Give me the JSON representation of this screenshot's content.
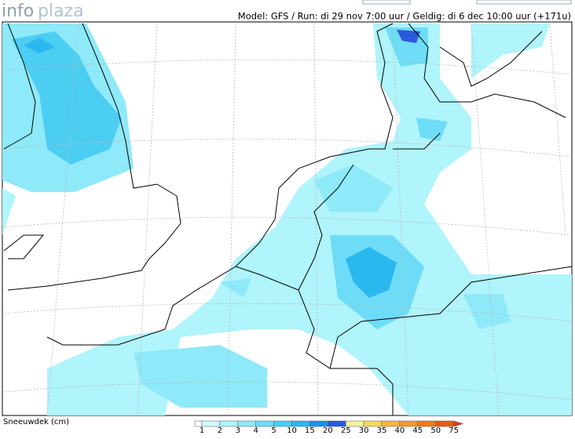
{
  "logo": {
    "part1": "info",
    "part2": "plaza"
  },
  "header": {
    "run_info": "Model: GFS / Run: di 29 nov 7:00 uur / Geldig: di 6 dec 10:00 uur (+171u)"
  },
  "legend": {
    "title": "Sneeuwdek (cm)",
    "labels": [
      "1",
      "2",
      "3",
      "4",
      "5",
      "10",
      "15",
      "20",
      "25",
      "30",
      "35",
      "40",
      "45",
      "50",
      "75"
    ],
    "colors": [
      "#ffffff",
      "#d2fdff",
      "#b0f4fc",
      "#8ee9f9",
      "#6edcf6",
      "#4ccdf2",
      "#2ab8ee",
      "#1a94e6",
      "#2a5adc",
      "#f4f4a0",
      "#f4d860",
      "#f4b840",
      "#f09a30",
      "#ec7c20",
      "#e85c18",
      "#e03c10"
    ]
  }
}
